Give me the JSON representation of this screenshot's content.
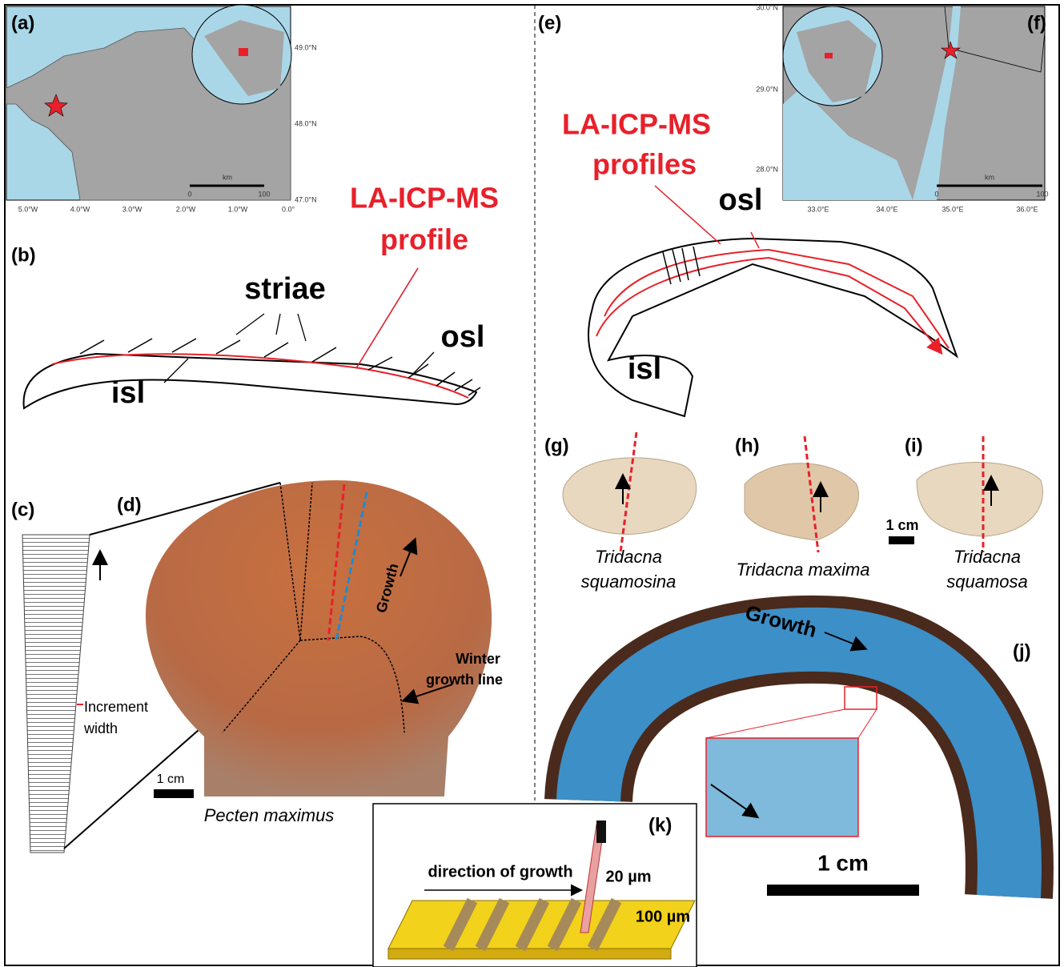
{
  "panels": {
    "a": "(a)",
    "b": "(b)",
    "c": "(c)",
    "d": "(d)",
    "e": "(e)",
    "f": "(f)",
    "g": "(g)",
    "h": "(h)",
    "i": "(i)",
    "j": "(j)",
    "k": "(k)"
  },
  "map_a": {
    "lat_labels": [
      "49.0°N",
      "48.0°N",
      "47.0°N"
    ],
    "lon_labels": [
      "5.0°W",
      "4.0°W",
      "3.0°W",
      "2.0°W",
      "1.0°W",
      "0.0°"
    ],
    "scale": {
      "unit": "km",
      "start": "0",
      "end": "100"
    }
  },
  "map_f": {
    "lat_labels": [
      "30.0°N",
      "29.0°N",
      "28.0°N"
    ],
    "lon_labels": [
      "33.0°E",
      "34.0°E",
      "35.0°E",
      "36.0°E"
    ],
    "scale": {
      "unit": "km",
      "start": "0",
      "end": "100"
    }
  },
  "panel_b": {
    "profile_label": [
      "LA-ICP-MS",
      "profile"
    ],
    "striae": "striae",
    "osl": "osl",
    "isl": "isl"
  },
  "panel_e": {
    "profile_label": [
      "LA-ICP-MS",
      "profiles"
    ],
    "osl": "osl",
    "isl": "isl"
  },
  "panel_c": {
    "increment": [
      "Increment",
      "width"
    ]
  },
  "panel_d": {
    "growth": "Growth",
    "winter": [
      "Winter",
      "growth line"
    ],
    "scale": "1 cm",
    "species": "Pecten maximus"
  },
  "specimens": {
    "items": [
      {
        "species": [
          "Tridacna",
          "squamosina"
        ]
      },
      {
        "species": [
          "Tridacna maxima"
        ]
      },
      {
        "species": [
          "Tridacna",
          "squamosa"
        ]
      }
    ],
    "scale": "1 cm"
  },
  "panel_j": {
    "growth": "Growth",
    "scale": "1 cm"
  },
  "panel_k": {
    "direction": "direction of growth",
    "width": "20 µm",
    "depth": "100 µm"
  }
}
